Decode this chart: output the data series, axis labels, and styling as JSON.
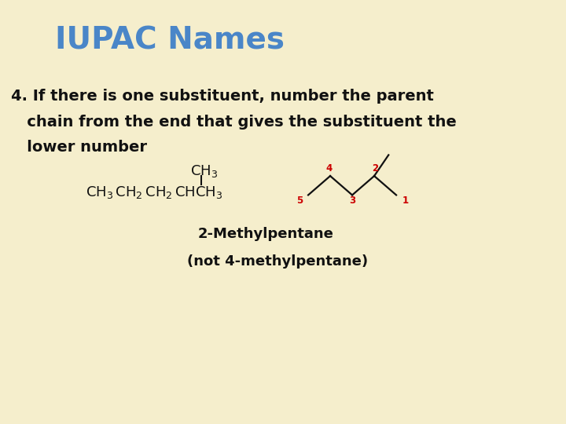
{
  "background_color": "#f5eecc",
  "title": "IUPAC Names",
  "title_color": "#4a86c8",
  "title_fontsize": 28,
  "body_text_line1": "4. If there is one substituent, number the parent",
  "body_text_line2": "   chain from the end that gives the substituent the",
  "body_text_line3": "   lower number",
  "body_fontsize": 14,
  "body_color": "#111111",
  "formula_color": "#111111",
  "number_color": "#cc0000",
  "label_2methylpentane": "2-Methylpentane",
  "label_not": "(not 4-methylpentane)",
  "label_fontsize": 13
}
